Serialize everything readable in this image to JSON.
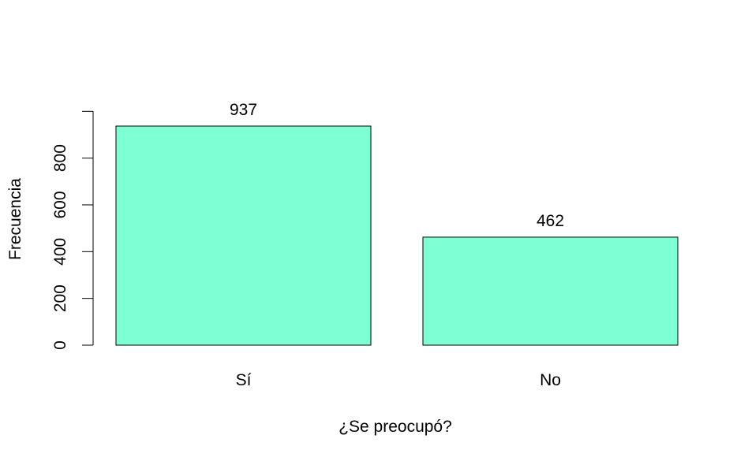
{
  "chart_data": {
    "type": "bar",
    "title": "",
    "xlabel": "¿Se preocupó?",
    "ylabel": "Frecuencia",
    "categories": [
      "Sí",
      "No"
    ],
    "values": [
      937,
      462
    ],
    "data_labels": [
      "937",
      "462"
    ],
    "yticks": [
      0,
      200,
      400,
      600,
      800
    ],
    "ylim": [
      0,
      1000
    ],
    "bar_color": "#7FFFD4",
    "bar_stroke": "#000000",
    "grid": false,
    "legend": "none"
  }
}
